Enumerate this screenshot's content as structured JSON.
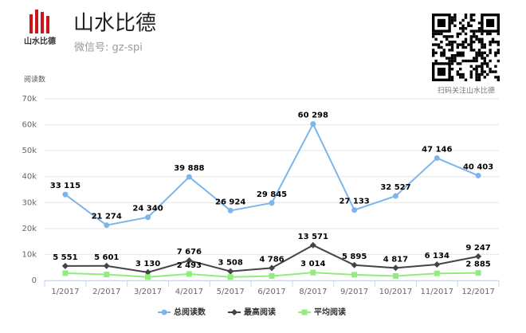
{
  "header": {
    "title": "山水比德",
    "subtitle": "微信号: gz-spi",
    "logo_text": "山水比德",
    "qr_caption": "扫码关注山水比德"
  },
  "chart_data": {
    "type": "line",
    "y_axis_label": "阅读数",
    "categories": [
      "1/2017",
      "2/2017",
      "3/2017",
      "4/2017",
      "5/2017",
      "6/2017",
      "8/2017",
      "9/2017",
      "10/2017",
      "11/2017",
      "12/2017"
    ],
    "series": [
      {
        "name": "总阅读数",
        "color": "#7cb5ec",
        "marker": "circle",
        "values": [
          33115,
          21274,
          24340,
          39888,
          26924,
          29845,
          60298,
          27133,
          32527,
          47146,
          40403
        ],
        "value_labels": [
          "33 115",
          "21 274",
          "24 340",
          "39 888",
          "26 924",
          "29 845",
          "60 298",
          "27 133",
          "32 527",
          "47 146",
          "40 403"
        ]
      },
      {
        "name": "最高阅读",
        "color": "#434348",
        "marker": "diamond",
        "values": [
          5551,
          5601,
          3130,
          7676,
          3508,
          4786,
          13571,
          5895,
          4817,
          6134,
          9247
        ],
        "value_labels": [
          "5 551",
          "5 601",
          "3 130",
          "7 676",
          "3 508",
          "4 786",
          "13 571",
          "5 895",
          "4 817",
          "6 134",
          "9 247"
        ]
      },
      {
        "name": "平均阅读",
        "color": "#90ed7d",
        "marker": "square",
        "values": [
          2800,
          2300,
          1300,
          2493,
          1300,
          1700,
          3014,
          2200,
          1700,
          2700,
          2885
        ],
        "value_labels": [
          null,
          null,
          null,
          "2 493",
          null,
          null,
          "3 014",
          null,
          null,
          null,
          "2 885"
        ]
      }
    ],
    "ylim": [
      0,
      70000
    ],
    "yticks": [
      0,
      {
        "value": 10000,
        "label": "10k"
      },
      {
        "value": 20000,
        "label": "20k"
      },
      {
        "value": 30000,
        "label": "30k"
      },
      {
        "value": 40000,
        "label": "40k"
      },
      {
        "value": 50000,
        "label": "50k"
      },
      {
        "value": 60000,
        "label": "60k"
      },
      {
        "value": 70000,
        "label": "70k"
      }
    ],
    "grid": true,
    "legend": "bottom"
  }
}
